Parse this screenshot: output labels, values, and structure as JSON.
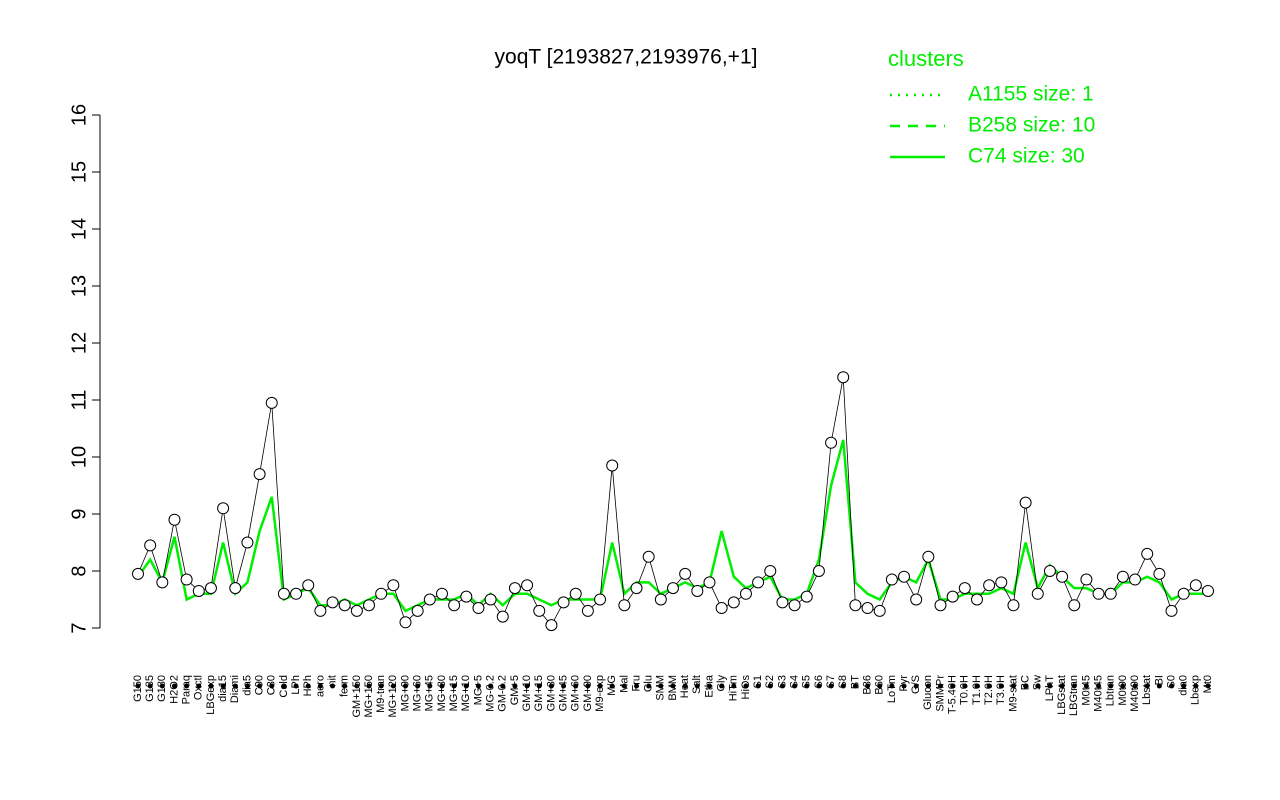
{
  "chart_data": {
    "type": "line",
    "title": "yoqT [2193827,2193976,+1]",
    "ylim": [
      7,
      16
    ],
    "yticks": [
      7,
      8,
      9,
      10,
      11,
      12,
      13,
      14,
      15,
      16
    ],
    "categories": [
      "G150",
      "G135",
      "G180",
      "H2O2",
      "Paraq",
      "Oxctl",
      "LBGexp",
      "dia15",
      "Diami",
      "dia5",
      "C90",
      "C30",
      "Cold",
      "LPh",
      "HPh",
      "aero",
      "nit",
      "ferm",
      "GM+150",
      "MG+150",
      "M9-tran",
      "MG+120",
      "MG+90",
      "MG+60",
      "MG+45",
      "MG+30",
      "MG+15",
      "MG+10",
      "MG+5",
      "MG-0.2",
      "GM-0.2",
      "GM+5",
      "GM+10",
      "GM+15",
      "GM+30",
      "GM+45",
      "GM+60",
      "GM+90",
      "M9-exp",
      "M/G",
      "Mal",
      "Fru",
      "Glu",
      "SMM",
      "BMM",
      "Heat",
      "Salt",
      "Etha",
      "Gly",
      "HiTm",
      "HiOs",
      "S1",
      "S2",
      "S3",
      "S4",
      "S5",
      "S6",
      "S7",
      "S8",
      "BT",
      "B36",
      "B60",
      "LoTm",
      "Pyr",
      "G/S",
      "Glucon",
      "SMMPr",
      "T-5.40H",
      "T0.0H",
      "T1.0H",
      "T2.0H",
      "T3.0H",
      "M9-stat",
      "BC",
      "Sw",
      "LPhT",
      "LBGstat",
      "LBGtran",
      "M0t45",
      "M40t45",
      "Lbtran",
      "M0t90",
      "M40t90",
      "Lbstat",
      "BI",
      "S0",
      "dia0",
      "Lbexp",
      "Mt0"
    ],
    "values": [
      7.95,
      8.45,
      7.8,
      8.9,
      7.85,
      7.65,
      7.7,
      9.1,
      7.7,
      8.5,
      9.7,
      10.95,
      7.6,
      7.6,
      7.75,
      7.3,
      7.45,
      7.4,
      7.3,
      7.4,
      7.6,
      7.75,
      7.1,
      7.3,
      7.5,
      7.6,
      7.4,
      7.55,
      7.35,
      7.5,
      7.2,
      7.7,
      7.75,
      7.3,
      7.05,
      7.45,
      7.6,
      7.3,
      7.5,
      9.85,
      7.4,
      7.7,
      8.25,
      7.5,
      7.7,
      7.95,
      7.65,
      7.8,
      7.35,
      7.45,
      7.6,
      7.8,
      8.0,
      7.45,
      7.4,
      7.55,
      8.0,
      10.25,
      11.4,
      7.4,
      7.35,
      7.3,
      7.85,
      7.9,
      7.5,
      8.25,
      7.4,
      7.55,
      7.7,
      7.5,
      7.75,
      7.8,
      7.4,
      9.2,
      7.6,
      8.0,
      7.9,
      7.4,
      7.85,
      7.6,
      7.6,
      7.9,
      7.85,
      8.3,
      7.95,
      7.3,
      7.6,
      7.75,
      7.65
    ],
    "series": [
      {
        "color": "#00ee00",
        "values": [
          7.9,
          8.2,
          7.8,
          8.6,
          7.5,
          7.6,
          7.6,
          8.5,
          7.6,
          7.8,
          8.7,
          9.3,
          7.5,
          7.6,
          7.7,
          7.4,
          7.4,
          7.5,
          7.4,
          7.5,
          7.6,
          7.6,
          7.3,
          7.4,
          7.5,
          7.5,
          7.5,
          7.6,
          7.4,
          7.6,
          7.4,
          7.6,
          7.6,
          7.5,
          7.4,
          7.5,
          7.5,
          7.5,
          7.5,
          8.5,
          7.6,
          7.8,
          7.8,
          7.6,
          7.7,
          7.8,
          7.7,
          7.8,
          8.7,
          7.9,
          7.7,
          7.8,
          7.9,
          7.5,
          7.5,
          7.6,
          8.2,
          9.5,
          10.3,
          7.8,
          7.6,
          7.5,
          7.8,
          7.9,
          7.8,
          8.2,
          7.5,
          7.5,
          7.6,
          7.6,
          7.6,
          7.7,
          7.6,
          8.5,
          7.7,
          8.1,
          7.9,
          7.7,
          7.7,
          7.6,
          7.6,
          7.8,
          7.8,
          7.9,
          7.8,
          7.5,
          7.6,
          7.6,
          7.6
        ]
      }
    ],
    "legend": {
      "title": "clusters",
      "entries": [
        {
          "name": "A1155 size: 1",
          "color": "#00ee00",
          "dash": "2 6"
        },
        {
          "name": "B258 size: 10",
          "color": "#00ee00",
          "dash": "10 8"
        },
        {
          "name": "C74 size: 30",
          "color": "#00ee00",
          "dash": "none"
        }
      ]
    }
  }
}
